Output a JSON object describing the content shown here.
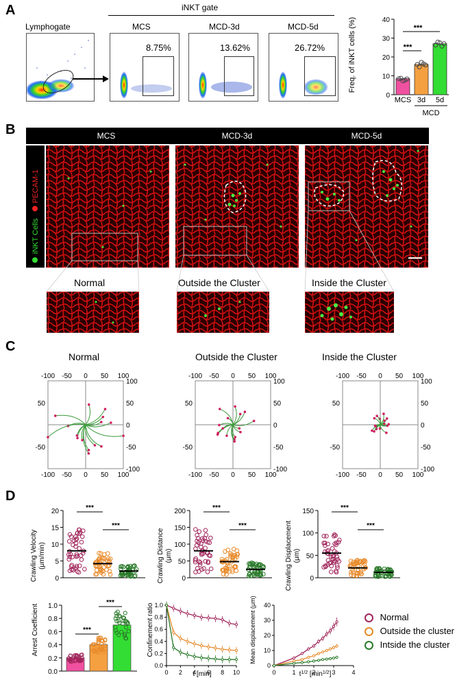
{
  "panels": {
    "a": "A",
    "b": "B",
    "c": "C",
    "d": "D"
  },
  "panelA": {
    "lymphogate": "Lymphogate",
    "gate_title": "iNKT gate",
    "conditions": [
      {
        "name": "MCS",
        "percent": "8.75%"
      },
      {
        "name": "MCD-3d",
        "percent": "13.62%"
      },
      {
        "name": "MCD-5d",
        "percent": "26.72%"
      }
    ],
    "bar_chart": {
      "ylabel": "Freq. of iNKT cells (%)",
      "group_label": "MCD",
      "significance": "***"
    }
  },
  "panelB": {
    "headers": [
      "MCS",
      "MCD-3d",
      "MCD-5d"
    ],
    "side_label_green": "iNKT Cells",
    "side_label_red": "PECAM-1",
    "zoom_labels": [
      "Normal",
      "Outside the Cluster",
      "Inside the Cluster"
    ]
  },
  "panelC": {
    "titles": [
      "Normal",
      "Outside the Cluster",
      "Inside the Cluster"
    ],
    "ticks": [
      "-100",
      "-50",
      "0",
      "50",
      "100"
    ]
  },
  "panelD": {
    "significance": "***",
    "legend": [
      "Normal",
      "Outside the cluster",
      "Intside the cluster"
    ],
    "colors": {
      "normal": "#a0245a",
      "outside": "#e88a2a",
      "inside": "#2a7a2a",
      "green_bar": "#33dd33",
      "pink_bar": "#f050a0",
      "orange_bar": "#f5a040"
    }
  },
  "chart_data": [
    {
      "type": "bar",
      "title": "",
      "categories": [
        "MCS",
        "3d",
        "5d"
      ],
      "values": [
        8.5,
        16,
        27
      ],
      "ylabel": "Freq. of iNKT cells (%)",
      "xlabel": "MCD",
      "ylim": [
        0,
        40
      ],
      "yticks": [
        0,
        10,
        20,
        30,
        40
      ]
    },
    {
      "type": "scatter",
      "ylabel": "Crawling Velocity (μm/min)",
      "ylim": [
        0,
        20
      ],
      "yticks": [
        0,
        5,
        10,
        15,
        20
      ],
      "series": [
        {
          "name": "Normal",
          "mean": 8
        },
        {
          "name": "Outside the cluster",
          "mean": 4.2
        },
        {
          "name": "Inside the cluster",
          "mean": 2
        }
      ]
    },
    {
      "type": "scatter",
      "ylabel": "Crawling Distance (μm)",
      "ylim": [
        0,
        200
      ],
      "yticks": [
        0,
        50,
        100,
        150,
        200
      ],
      "series": [
        {
          "name": "Normal",
          "mean": 80
        },
        {
          "name": "Outside the cluster",
          "mean": 48
        },
        {
          "name": "Inside the cluster",
          "mean": 25
        }
      ]
    },
    {
      "type": "scatter",
      "ylabel": "Crawling Displacement (μm)",
      "ylim": [
        0,
        150
      ],
      "yticks": [
        0,
        50,
        100,
        150
      ],
      "series": [
        {
          "name": "Normal",
          "mean": 55
        },
        {
          "name": "Outside the cluster",
          "mean": 22
        },
        {
          "name": "Inside the cluster",
          "mean": 12
        }
      ]
    },
    {
      "type": "bar",
      "ylabel": "Arrest Coefficient",
      "categories": [
        "Normal",
        "Outside",
        "Inside"
      ],
      "values": [
        0.2,
        0.4,
        0.7
      ],
      "ylim": [
        0,
        1.0
      ],
      "yticks": [
        0.0,
        0.2,
        0.4,
        0.6,
        0.8,
        1.0
      ]
    },
    {
      "type": "line",
      "xlabel": "t [min]",
      "ylabel": "Confinement ratio",
      "x": [
        0,
        1,
        2,
        3,
        4,
        5,
        6,
        7,
        8,
        9,
        10
      ],
      "xticks": [
        0,
        2,
        4,
        6,
        8,
        10
      ],
      "yticks": [
        0.0,
        0.2,
        0.4,
        0.6,
        0.8,
        1.0
      ],
      "ylim": [
        0,
        1.0
      ],
      "series": [
        {
          "name": "Normal",
          "values": [
            1.0,
            0.95,
            0.9,
            0.86,
            0.83,
            0.8,
            0.79,
            0.78,
            0.76,
            0.7,
            0.68
          ]
        },
        {
          "name": "Outside the cluster",
          "values": [
            1.0,
            0.55,
            0.45,
            0.4,
            0.36,
            0.33,
            0.31,
            0.29,
            0.27,
            0.26,
            0.25
          ]
        },
        {
          "name": "Inside the cluster",
          "values": [
            1.0,
            0.3,
            0.22,
            0.18,
            0.15,
            0.13,
            0.12,
            0.11,
            0.1,
            0.1,
            0.1
          ]
        }
      ]
    },
    {
      "type": "line",
      "xlabel": "t^1/2 [min^1/2]",
      "ylabel": "Mean displacement (μm)",
      "x": [
        0,
        1,
        1.41,
        1.73,
        2,
        2.24,
        2.45,
        2.65,
        2.83,
        3,
        3.16
      ],
      "xticks": [
        0,
        1,
        2,
        3,
        4
      ],
      "yticks": [
        0,
        10,
        20,
        30,
        40
      ],
      "ylim": [
        0,
        40
      ],
      "series": [
        {
          "name": "Normal",
          "values": [
            0,
            5,
            8,
            11,
            13,
            16,
            18,
            21,
            23,
            26,
            29
          ]
        },
        {
          "name": "Outside the cluster",
          "values": [
            0,
            3,
            4,
            5.5,
            6.5,
            8,
            9,
            10,
            11,
            12,
            13
          ]
        },
        {
          "name": "Inside the cluster",
          "values": [
            0,
            1.5,
            2,
            2.5,
            3,
            3.5,
            4,
            4.3,
            4.6,
            5,
            5.5
          ]
        }
      ]
    }
  ],
  "axis_text": {
    "a_ylabel": "Freq. of iNKT cells (%)",
    "a_xt": [
      "MCS",
      "3d",
      "5d"
    ],
    "a_group": "MCD",
    "d1": "Crawling Velocity",
    "d1u": "(μm/min)",
    "d2": "Crawling Distance",
    "d2u": "(μm)",
    "d3": "Crawling Displacement",
    "d3u": "(μm)",
    "d4": "Arrest Coefficient",
    "d5x": "t [min]",
    "d5y": "Confinement ratio",
    "d6x": "t",
    "d6xs": "1/2",
    "d6xu": " [min",
    "d6xus": "1/2",
    "d6xe": "]",
    "d6y": "Mean displacement (μm)"
  }
}
